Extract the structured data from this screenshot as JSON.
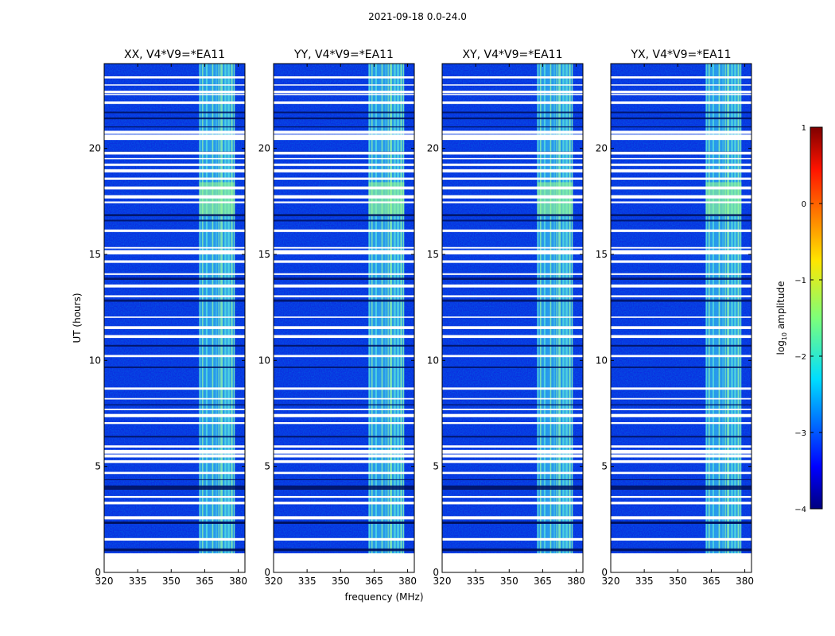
{
  "chart_data": {
    "type": "heatmap",
    "suptitle": "2021-09-18 0.0-24.0",
    "panels": [
      {
        "title": "XX, V4*V9=*EA11",
        "show_ylabel": true
      },
      {
        "title": "YY, V4*V9=*EA11",
        "show_ylabel": false
      },
      {
        "title": "XY, V4*V9=*EA11",
        "show_ylabel": false
      },
      {
        "title": "YX, V4*V9=*EA11",
        "show_ylabel": false
      }
    ],
    "xlabel": "frequency (MHz)",
    "ylabel": "UT (hours)",
    "xlim": [
      320,
      383
    ],
    "ylim": [
      0,
      24
    ],
    "xticks": [
      320,
      335,
      350,
      365,
      380
    ],
    "yticks": [
      0,
      5,
      10,
      15,
      20
    ],
    "data_time_range": [
      0.9,
      24.0
    ],
    "rfi_band_mhz": [
      362.5,
      378.5
    ],
    "rfi_bright_interval_hours": [
      16.8,
      18.4
    ],
    "colorbar": {
      "label_prefix": "log",
      "label_sub": "10",
      "label_suffix": " amplitude",
      "range": [
        -4,
        1
      ],
      "ticks": [
        "1",
        "0",
        "−1",
        "−2",
        "−3",
        "−4"
      ],
      "colormap": "jet"
    }
  }
}
